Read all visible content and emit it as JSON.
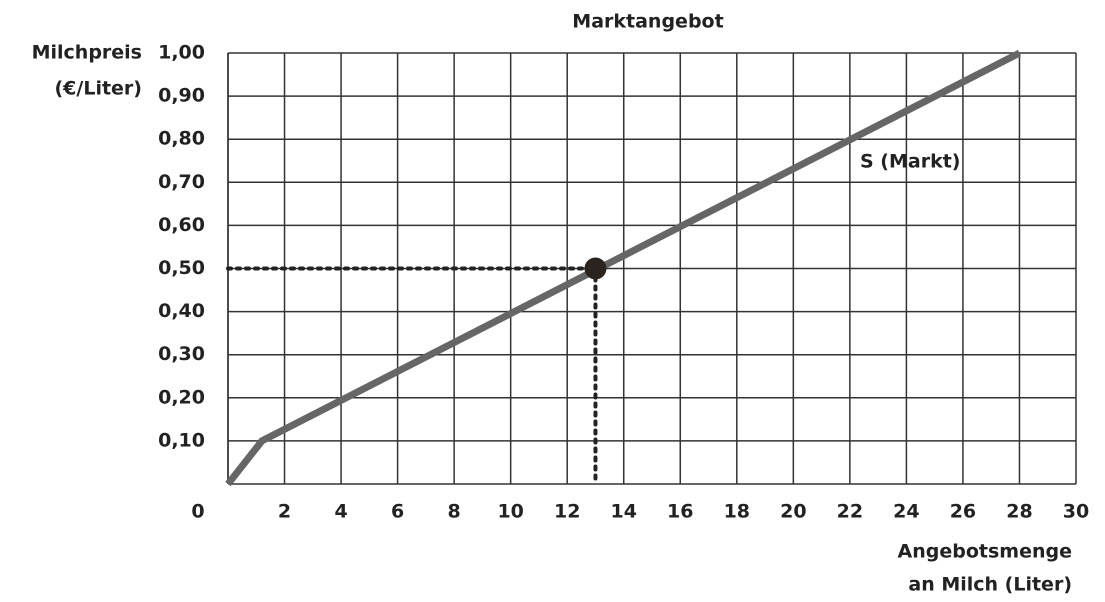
{
  "chart_data": {
    "type": "line",
    "title": "Marktangebot",
    "y_label": [
      "Milchpreis",
      "(€/Liter)"
    ],
    "x_label": [
      "Angebotsmenge",
      "an Milch (Liter)"
    ],
    "series": [
      {
        "name": "S (Markt)",
        "color": "#666666",
        "x": [
          0,
          1.2,
          28
        ],
        "values": [
          0,
          0.1,
          1.0
        ]
      }
    ],
    "point": {
      "x": 13,
      "y": 0.5
    },
    "xlim": [
      0,
      30
    ],
    "xticks": [
      0,
      2,
      4,
      6,
      8,
      10,
      12,
      14,
      16,
      18,
      20,
      22,
      24,
      26,
      28,
      30
    ],
    "ylim": [
      0,
      1.0
    ],
    "yticks": [
      {
        "value": 0.1,
        "label": "0,10"
      },
      {
        "value": 0.2,
        "label": "0,20"
      },
      {
        "value": 0.3,
        "label": "0,30"
      },
      {
        "value": 0.4,
        "label": "0,40"
      },
      {
        "value": 0.5,
        "label": "0,50"
      },
      {
        "value": 0.6,
        "label": "0,60"
      },
      {
        "value": 0.7,
        "label": "0,70"
      },
      {
        "value": 0.8,
        "label": "0,80"
      },
      {
        "value": 0.9,
        "label": "0,90"
      },
      {
        "value": 1.0,
        "label": "1,00"
      }
    ],
    "grid": true
  }
}
